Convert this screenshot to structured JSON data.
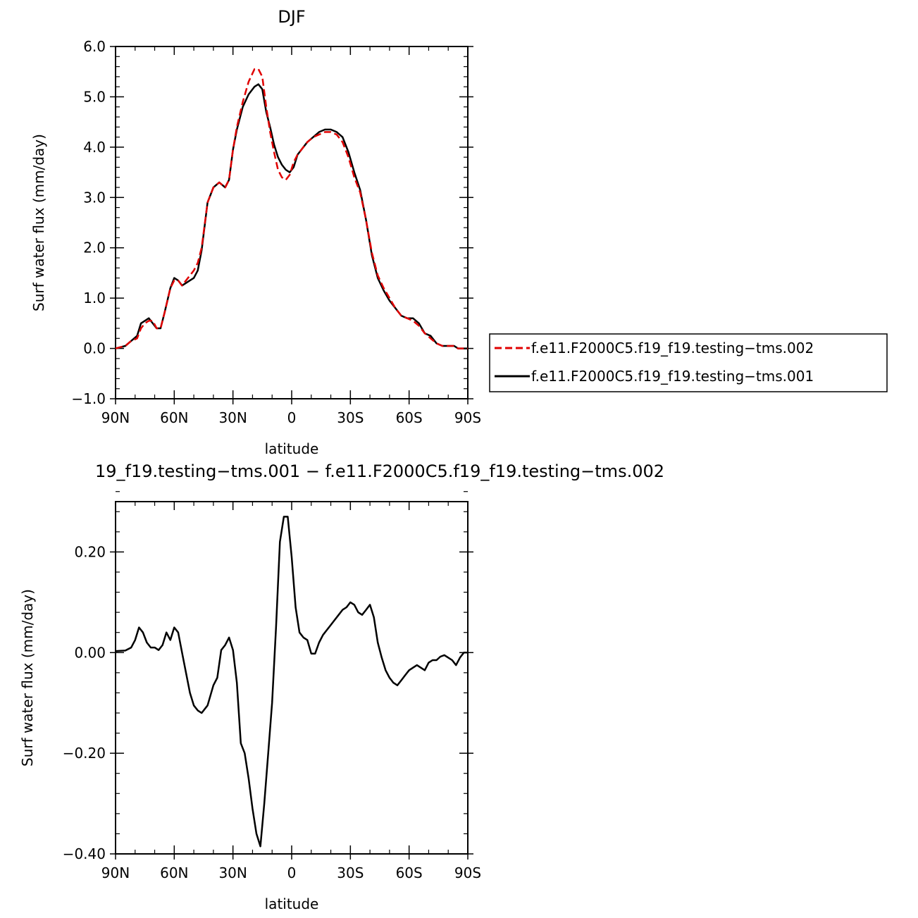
{
  "chart_data": [
    {
      "type": "line",
      "title": "DJF",
      "xlabel": "latitude",
      "ylabel": "Surf water flux (mm/day)",
      "xlim": [
        -90,
        90
      ],
      "ylim": [
        -1.0,
        6.0
      ],
      "x_tick_values": [
        -90,
        -60,
        -30,
        0,
        30,
        60,
        90
      ],
      "x_tick_labels": [
        "90N",
        "60N",
        "30N",
        "0",
        "30S",
        "60S",
        "90S"
      ],
      "y_tick_values": [
        -1,
        0,
        1,
        2,
        3,
        4,
        5,
        6
      ],
      "y_tick_labels": [
        "−1.0",
        "0.0",
        "1.0",
        "2.0",
        "3.0",
        "4.0",
        "5.0",
        "6.0"
      ],
      "grid": false,
      "legend": "right",
      "series": [
        {
          "name": "f.e11.F2000C5.f19_f19.testing−tms.002",
          "color": "#e00000",
          "dash": "dashed",
          "x": [
            -90,
            -85,
            -82,
            -79,
            -77,
            -75,
            -73,
            -71,
            -69,
            -67,
            -65,
            -62,
            -60,
            -58,
            -56,
            -54,
            -52,
            -50,
            -48,
            -46,
            -43,
            -40,
            -37,
            -34,
            -32,
            -30,
            -28,
            -25,
            -22,
            -19,
            -17,
            -15,
            -13,
            -11,
            -9,
            -7,
            -5,
            -3,
            -1,
            1,
            3,
            5,
            8,
            11,
            14,
            17,
            20,
            23,
            26,
            29,
            32,
            35,
            38,
            41,
            44,
            47,
            50,
            53,
            56,
            59,
            62,
            65,
            68,
            71,
            74,
            77,
            80,
            83,
            85,
            87,
            90
          ],
          "y": [
            0.0,
            0.05,
            0.15,
            0.2,
            0.4,
            0.5,
            0.55,
            0.55,
            0.4,
            0.4,
            0.7,
            1.2,
            1.35,
            1.35,
            1.25,
            1.35,
            1.45,
            1.55,
            1.7,
            2.0,
            2.9,
            3.2,
            3.3,
            3.2,
            3.35,
            3.95,
            4.4,
            4.9,
            5.3,
            5.55,
            5.55,
            5.4,
            4.8,
            4.3,
            3.9,
            3.55,
            3.4,
            3.35,
            3.45,
            3.7,
            3.85,
            3.95,
            4.1,
            4.2,
            4.25,
            4.3,
            4.3,
            4.25,
            4.1,
            3.8,
            3.4,
            3.1,
            2.55,
            1.9,
            1.45,
            1.2,
            1.0,
            0.8,
            0.65,
            0.6,
            0.55,
            0.45,
            0.3,
            0.2,
            0.1,
            0.05,
            0.05,
            0.05,
            0.0,
            0.0,
            0.0
          ]
        },
        {
          "name": "f.e11.F2000C5.f19_f19.testing−tms.001",
          "color": "#000000",
          "dash": "solid",
          "x": [
            -90,
            -85,
            -82,
            -79,
            -77,
            -75,
            -73,
            -71,
            -69,
            -67,
            -65,
            -62,
            -60,
            -58,
            -56,
            -54,
            -52,
            -50,
            -48,
            -46,
            -43,
            -40,
            -37,
            -34,
            -32,
            -30,
            -28,
            -25,
            -22,
            -19,
            -17,
            -15,
            -13,
            -11,
            -9,
            -7,
            -5,
            -3,
            -1,
            1,
            3,
            5,
            8,
            11,
            14,
            17,
            20,
            23,
            26,
            29,
            32,
            35,
            38,
            41,
            44,
            47,
            50,
            53,
            56,
            59,
            62,
            65,
            68,
            71,
            74,
            77,
            80,
            83,
            85,
            87,
            90
          ],
          "y": [
            0.0,
            0.05,
            0.15,
            0.25,
            0.5,
            0.55,
            0.6,
            0.5,
            0.4,
            0.4,
            0.7,
            1.2,
            1.4,
            1.35,
            1.25,
            1.3,
            1.35,
            1.4,
            1.55,
            1.95,
            2.9,
            3.2,
            3.3,
            3.2,
            3.35,
            3.95,
            4.35,
            4.8,
            5.05,
            5.2,
            5.25,
            5.15,
            4.7,
            4.4,
            4.05,
            3.8,
            3.65,
            3.55,
            3.5,
            3.6,
            3.85,
            3.95,
            4.1,
            4.2,
            4.3,
            4.35,
            4.35,
            4.3,
            4.2,
            3.9,
            3.5,
            3.15,
            2.55,
            1.85,
            1.4,
            1.15,
            0.95,
            0.8,
            0.65,
            0.6,
            0.6,
            0.5,
            0.3,
            0.25,
            0.1,
            0.05,
            0.05,
            0.05,
            0.0,
            0.0,
            0.0
          ]
        }
      ]
    },
    {
      "type": "line",
      "title": "19_f19.testing−tms.001 − f.e11.F2000C5.f19_f19.testing−tms.002",
      "xlabel": "latitude",
      "ylabel": "Surf water flux (mm/day)",
      "xlim": [
        -90,
        90
      ],
      "ylim": [
        -0.4,
        0.3
      ],
      "x_tick_values": [
        -90,
        -60,
        -30,
        0,
        30,
        60,
        90
      ],
      "x_tick_labels": [
        "90N",
        "60N",
        "30N",
        "0",
        "30S",
        "60S",
        "90S"
      ],
      "y_tick_values": [
        -0.4,
        -0.2,
        0.0,
        0.2
      ],
      "y_tick_labels": [
        "−0.40",
        "−0.20",
        "0.00",
        "0.20"
      ],
      "grid": false,
      "series": [
        {
          "name": "",
          "color": "#000000",
          "dash": "solid",
          "x": [
            -90,
            -85,
            -82,
            -80,
            -78,
            -76,
            -74,
            -72,
            -70,
            -68,
            -66,
            -64,
            -62,
            -60,
            -58,
            -56,
            -54,
            -52,
            -50,
            -48,
            -46,
            -43,
            -40,
            -38,
            -36,
            -34,
            -32,
            -30,
            -28,
            -26,
            -24,
            -22,
            -20,
            -18,
            -16,
            -14,
            -12,
            -10,
            -8,
            -6,
            -4,
            -2,
            0,
            2,
            4,
            6,
            8,
            10,
            12,
            14,
            16,
            18,
            20,
            22,
            24,
            26,
            28,
            30,
            32,
            34,
            36,
            38,
            40,
            42,
            44,
            46,
            48,
            50,
            52,
            54,
            56,
            58,
            60,
            62,
            64,
            66,
            68,
            70,
            72,
            74,
            76,
            78,
            80,
            82,
            84,
            86,
            88,
            90
          ],
          "y": [
            0.003,
            0.004,
            0.01,
            0.025,
            0.05,
            0.04,
            0.02,
            0.01,
            0.01,
            0.005,
            0.015,
            0.04,
            0.025,
            0.05,
            0.04,
            0.0,
            -0.04,
            -0.08,
            -0.105,
            -0.115,
            -0.12,
            -0.105,
            -0.065,
            -0.05,
            0.005,
            0.015,
            0.03,
            0.005,
            -0.06,
            -0.18,
            -0.2,
            -0.25,
            -0.31,
            -0.36,
            -0.385,
            -0.3,
            -0.2,
            -0.1,
            0.05,
            0.22,
            0.27,
            0.27,
            0.19,
            0.09,
            0.04,
            0.03,
            0.025,
            -0.002,
            -0.002,
            0.02,
            0.035,
            0.045,
            0.055,
            0.065,
            0.075,
            0.085,
            0.09,
            0.1,
            0.095,
            0.08,
            0.075,
            0.085,
            0.095,
            0.07,
            0.02,
            -0.01,
            -0.035,
            -0.05,
            -0.06,
            -0.065,
            -0.055,
            -0.045,
            -0.035,
            -0.03,
            -0.025,
            -0.03,
            -0.035,
            -0.02,
            -0.015,
            -0.015,
            -0.008,
            -0.005,
            -0.01,
            -0.015,
            -0.025,
            -0.01,
            0.0,
            0.0
          ]
        }
      ]
    }
  ]
}
